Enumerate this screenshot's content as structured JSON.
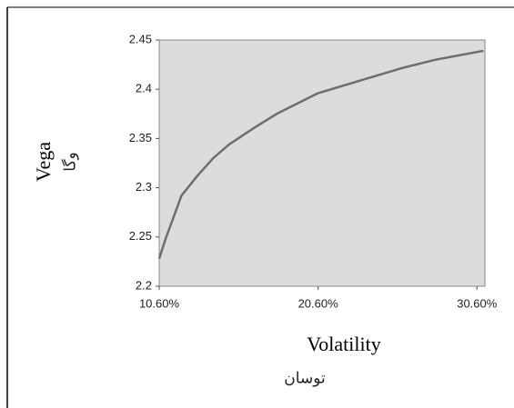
{
  "chart_data": {
    "type": "line",
    "x_label": "Volatility",
    "x_label_2": "توسان",
    "y_label": "Vega",
    "y_label_2": "وگا",
    "x": [
      10.6,
      11,
      12,
      13,
      14,
      15,
      16.6,
      18,
      20.6,
      23.5,
      26,
      28,
      31
    ],
    "series": [
      {
        "color": "#6e6e6e",
        "values": [
          2.228,
          2.248,
          2.292,
          2.312,
          2.33,
          2.344,
          2.361,
          2.375,
          2.396,
          2.41,
          2.422,
          2.43,
          2.439
        ]
      }
    ],
    "xlim": [
      10.6,
      31.1
    ],
    "xticks": [
      {
        "value": 10.6,
        "label": "10.60%"
      },
      {
        "value": 20.6,
        "label": "20.60%"
      },
      {
        "value": 30.6,
        "label": "30.60%"
      }
    ],
    "ylim": [
      2.2,
      2.45
    ],
    "yticks": [
      2.2,
      2.25,
      2.3,
      2.35,
      2.4,
      2.45
    ]
  }
}
